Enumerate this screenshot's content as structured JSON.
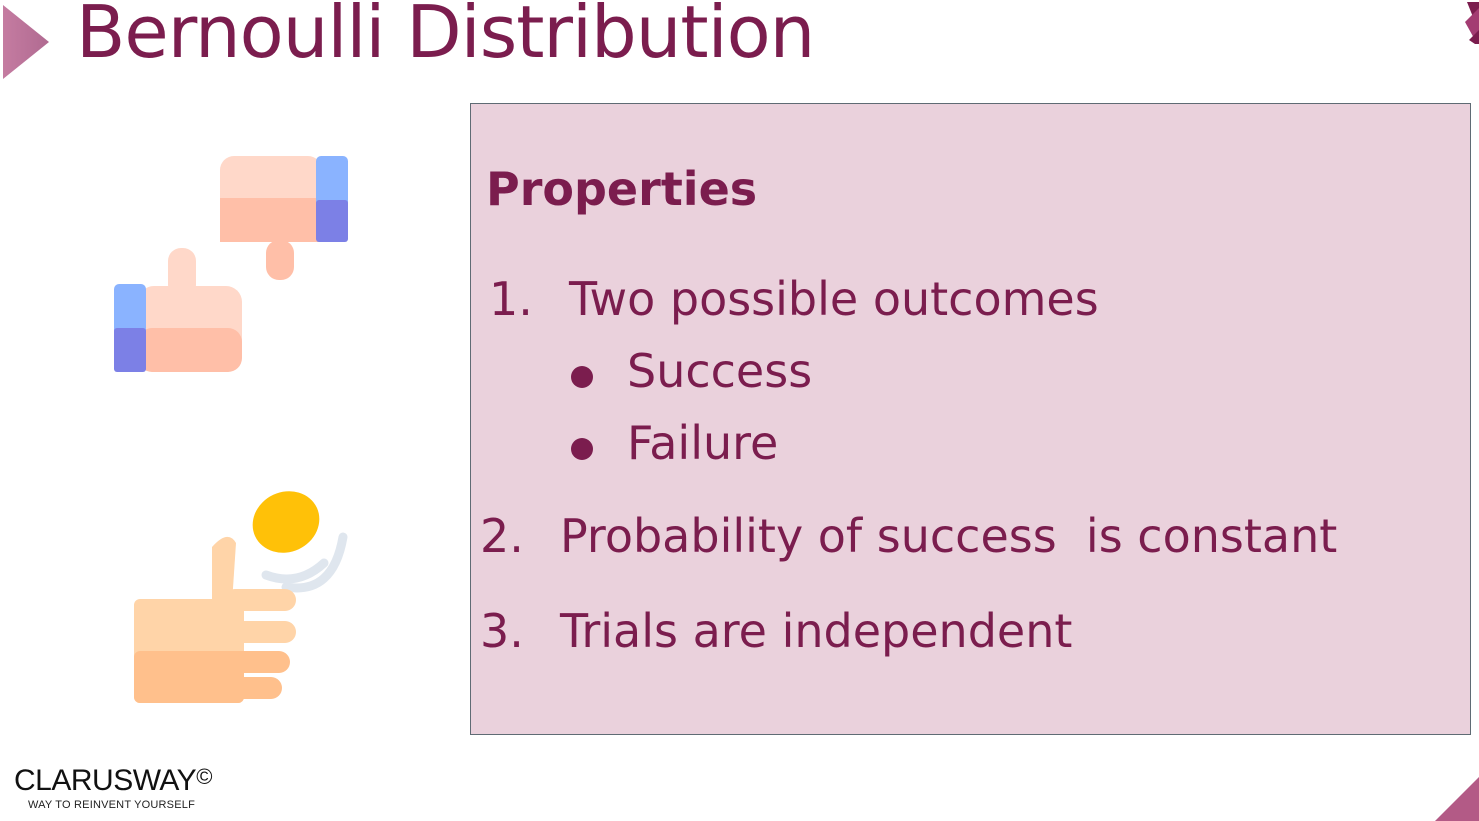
{
  "slide": {
    "title": "Bernoulli Distribution",
    "accent_color": "#7b1d4e",
    "box_color": "#ead1dc"
  },
  "properties": {
    "heading": "Properties",
    "items": [
      {
        "number": "1.",
        "text": "Two possible outcomes",
        "subitems": [
          "Success",
          "Failure"
        ]
      },
      {
        "number": "2.",
        "text": "Probability of success  is constant"
      },
      {
        "number": "3.",
        "text": "Trials are independent"
      }
    ]
  },
  "illustrations": {
    "top": "thumbs-up-down-icon",
    "bottom": "coin-flip-icon"
  },
  "logo": {
    "name": "CLARUSWAY",
    "copyright": "©",
    "tagline": "WAY TO REINVENT YOURSELF"
  }
}
